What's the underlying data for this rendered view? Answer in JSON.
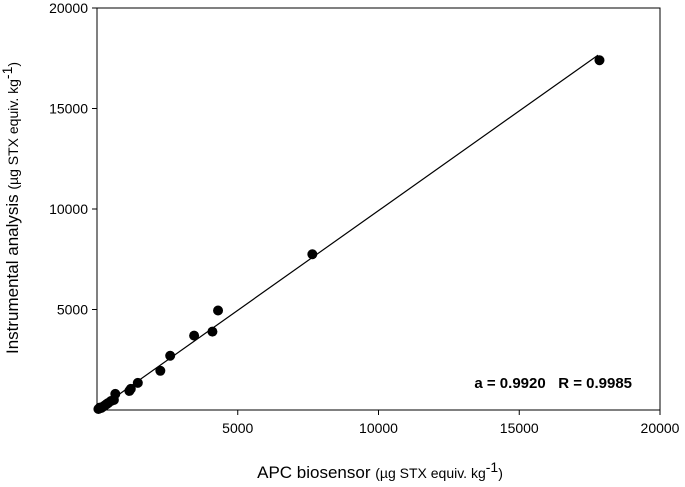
{
  "chart_data": {
    "type": "scatter",
    "xlabel": "APC biosensor",
    "xlabel_unit": "(µg STX equiv. kg",
    "ylabel": "Instrumental analysis",
    "ylabel_unit": "(µg STX equiv. kg",
    "unit_exponent": "-1",
    "unit_close": ")",
    "xlim": [
      0,
      20000
    ],
    "ylim": [
      0,
      20000
    ],
    "x_ticks": [
      5000,
      10000,
      15000,
      20000
    ],
    "x_tick_labels": [
      "5000",
      "10000",
      "15000",
      "20000"
    ],
    "y_ticks": [
      5000,
      10000,
      15000,
      20000
    ],
    "y_tick_labels": [
      "5000",
      "10000",
      "15000",
      "20000"
    ],
    "grid": false,
    "legend": "none",
    "points": [
      {
        "x": 50,
        "y": 50
      },
      {
        "x": 100,
        "y": 120
      },
      {
        "x": 150,
        "y": 100
      },
      {
        "x": 200,
        "y": 150
      },
      {
        "x": 250,
        "y": 200
      },
      {
        "x": 300,
        "y": 250
      },
      {
        "x": 350,
        "y": 300
      },
      {
        "x": 400,
        "y": 350
      },
      {
        "x": 500,
        "y": 450
      },
      {
        "x": 600,
        "y": 500
      },
      {
        "x": 650,
        "y": 800
      },
      {
        "x": 1150,
        "y": 950
      },
      {
        "x": 1200,
        "y": 1050
      },
      {
        "x": 1450,
        "y": 1350
      },
      {
        "x": 2250,
        "y": 1950
      },
      {
        "x": 2600,
        "y": 2700
      },
      {
        "x": 3450,
        "y": 3700
      },
      {
        "x": 4100,
        "y": 3900
      },
      {
        "x": 4300,
        "y": 4950
      },
      {
        "x": 7650,
        "y": 7750
      },
      {
        "x": 17850,
        "y": 17400
      }
    ],
    "fit_line": {
      "slope": 0.992,
      "intercept": 0,
      "x_range": [
        0,
        17800
      ]
    },
    "annotation": "a = 0.9920   R = 0.9985",
    "marker_color": "#000000",
    "line_color": "#000000"
  }
}
